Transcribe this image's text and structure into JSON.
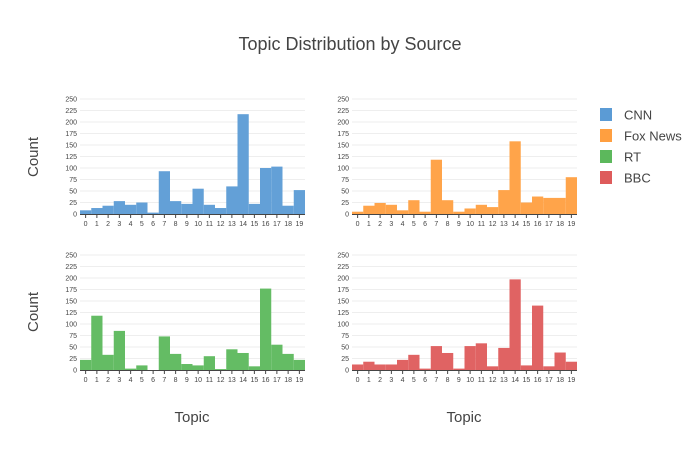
{
  "title": "Topic Distribution by Source",
  "legend": {
    "placement": "right",
    "entries": [
      {
        "name": "CNN",
        "color": "#5b9bd5"
      },
      {
        "name": "Fox News",
        "color": "#ff9f40"
      },
      {
        "name": "RT",
        "color": "#5cb85c"
      },
      {
        "name": "BBC",
        "color": "#de5b5b"
      }
    ]
  },
  "chart_data": [
    {
      "type": "bar",
      "series_name": "CNN",
      "color": "#5b9bd5",
      "categories": [
        "0",
        "1",
        "2",
        "3",
        "4",
        "5",
        "6",
        "7",
        "8",
        "9",
        "10",
        "11",
        "12",
        "13",
        "14",
        "15",
        "16",
        "17",
        "18",
        "19"
      ],
      "values": [
        8,
        13,
        18,
        28,
        20,
        25,
        3,
        93,
        28,
        22,
        55,
        20,
        13,
        60,
        217,
        22,
        100,
        103,
        18,
        52
      ],
      "ylabel": "Count",
      "xlabel": "",
      "ylim": [
        0,
        250
      ],
      "yticks": [
        "0",
        "25",
        "50",
        "75",
        "100",
        "125",
        "150",
        "175",
        "200",
        "225",
        "250"
      ],
      "grid": true
    },
    {
      "type": "bar",
      "series_name": "Fox News",
      "color": "#ff9f40",
      "categories": [
        "0",
        "1",
        "2",
        "3",
        "4",
        "5",
        "6",
        "7",
        "8",
        "9",
        "10",
        "11",
        "12",
        "13",
        "14",
        "15",
        "16",
        "17",
        "18",
        "19"
      ],
      "values": [
        5,
        18,
        24,
        20,
        8,
        30,
        5,
        118,
        30,
        5,
        12,
        20,
        15,
        52,
        158,
        25,
        38,
        35,
        35,
        80
      ],
      "ylabel": "",
      "xlabel": "",
      "ylim": [
        0,
        250
      ],
      "yticks": [
        "0",
        "25",
        "50",
        "75",
        "100",
        "125",
        "150",
        "175",
        "200",
        "225",
        "250"
      ],
      "grid": true
    },
    {
      "type": "bar",
      "series_name": "RT",
      "color": "#5cb85c",
      "categories": [
        "0",
        "1",
        "2",
        "3",
        "4",
        "5",
        "6",
        "7",
        "8",
        "9",
        "10",
        "11",
        "12",
        "13",
        "14",
        "15",
        "16",
        "17",
        "18",
        "19"
      ],
      "values": [
        22,
        118,
        33,
        85,
        3,
        10,
        0,
        73,
        35,
        13,
        10,
        30,
        2,
        45,
        37,
        8,
        177,
        55,
        35,
        22
      ],
      "ylabel": "Count",
      "xlabel": "Topic",
      "ylim": [
        0,
        250
      ],
      "yticks": [
        "0",
        "25",
        "50",
        "75",
        "100",
        "125",
        "150",
        "175",
        "200",
        "225",
        "250"
      ],
      "grid": true
    },
    {
      "type": "bar",
      "series_name": "BBC",
      "color": "#de5b5b",
      "categories": [
        "0",
        "1",
        "2",
        "3",
        "4",
        "5",
        "6",
        "7",
        "8",
        "9",
        "10",
        "11",
        "12",
        "13",
        "14",
        "15",
        "16",
        "17",
        "18",
        "19"
      ],
      "values": [
        12,
        18,
        12,
        12,
        22,
        33,
        3,
        52,
        37,
        3,
        52,
        58,
        8,
        48,
        197,
        10,
        140,
        8,
        38,
        18
      ],
      "ylabel": "",
      "xlabel": "Topic",
      "ylim": [
        0,
        250
      ],
      "yticks": [
        "0",
        "25",
        "50",
        "75",
        "100",
        "125",
        "150",
        "175",
        "200",
        "225",
        "250"
      ],
      "grid": true
    }
  ]
}
